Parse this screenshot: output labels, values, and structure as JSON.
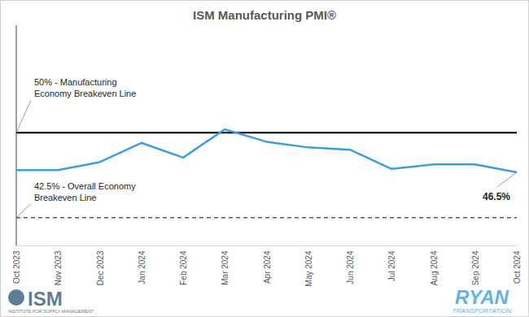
{
  "chart_data": {
    "type": "line",
    "title": "ISM Manufacturing PMI®",
    "categories": [
      "Oct 2023",
      "Nov 2023",
      "Dec 2023",
      "Jan 2024",
      "Feb 2024",
      "Mar 2024",
      "Apr 2024",
      "May 2024",
      "Jun 2024",
      "Jul 2024",
      "Aug 2024",
      "Sep 2024",
      "Oct 2024"
    ],
    "values": [
      46.7,
      46.7,
      47.4,
      49.1,
      47.8,
      50.3,
      49.2,
      48.7,
      48.5,
      46.8,
      47.2,
      47.2,
      46.5
    ],
    "value_labels": [
      null,
      null,
      null,
      null,
      null,
      null,
      null,
      null,
      null,
      null,
      null,
      null,
      "46.5%"
    ],
    "color": "#3a9fdb",
    "ylim": [
      40,
      59.5
    ],
    "tick_labels": "x",
    "grid": false,
    "reference_lines": [
      {
        "value": 50,
        "label": "50% - Manufacturing Economy Breakeven Line",
        "line_style": "solid"
      },
      {
        "value": 42.5,
        "label": "42.5% - Overall Economy Breakeven Line",
        "line_style": "dashed"
      }
    ],
    "footer": {
      "left": {
        "text": "ISM",
        "subtext": "INSTITUTE FOR SUPPLY MANAGEMENT"
      },
      "right": {
        "text": "RYAN",
        "subtext": "TRANSPORTATION"
      }
    }
  }
}
